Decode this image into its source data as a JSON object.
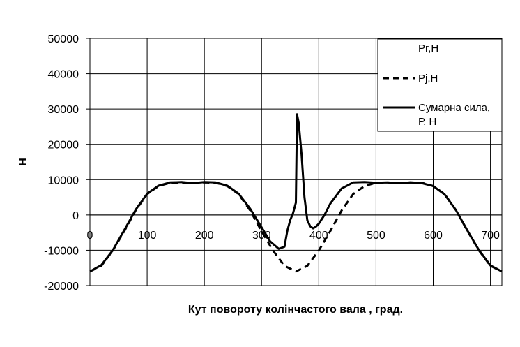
{
  "chart_data": {
    "type": "line",
    "title": "",
    "xlabel": "Кут повороту колінчастого вала , град.",
    "ylabel": "Н",
    "xlim": [
      0,
      720
    ],
    "ylim": [
      -20000,
      50000
    ],
    "x_ticks": [
      0,
      100,
      200,
      300,
      400,
      500,
      600,
      700
    ],
    "y_ticks": [
      -20000,
      -10000,
      0,
      10000,
      20000,
      30000,
      40000,
      50000
    ],
    "grid": true,
    "legend_position": "top-right",
    "series": [
      {
        "name": "Pr,H",
        "line_style": "none",
        "color": "#000000",
        "x": [],
        "y": []
      },
      {
        "name": "Pj,H",
        "line_style": "dashed",
        "color": "#000000",
        "x": [
          0,
          20,
          40,
          60,
          80,
          100,
          120,
          140,
          160,
          180,
          200,
          220,
          240,
          260,
          280,
          300,
          320,
          340,
          360,
          380,
          400,
          420,
          440,
          460,
          480,
          500,
          520,
          540,
          560,
          580,
          600,
          620,
          640,
          660,
          680,
          700,
          720
        ],
        "y": [
          -16000,
          -14400,
          -10100,
          -4600,
          1300,
          5900,
          8200,
          9100,
          9200,
          9000,
          9200,
          9100,
          8200,
          5900,
          1300,
          -4600,
          -10100,
          -14400,
          -16000,
          -14400,
          -10100,
          -4600,
          1300,
          5900,
          8200,
          9100,
          9200,
          9000,
          9200,
          9100,
          8200,
          5900,
          1300,
          -4600,
          -10100,
          -14400,
          -16000
        ]
      },
      {
        "name": "Сумарна сила,\nР, Н",
        "line_style": "solid",
        "color": "#000000",
        "x": [
          0,
          20,
          40,
          60,
          80,
          100,
          120,
          140,
          160,
          180,
          200,
          220,
          240,
          260,
          280,
          300,
          315,
          330,
          340,
          345,
          350,
          355,
          360,
          362,
          365,
          370,
          375,
          380,
          385,
          390,
          395,
          400,
          410,
          420,
          440,
          460,
          480,
          500,
          520,
          540,
          560,
          580,
          600,
          620,
          640,
          660,
          680,
          700,
          720
        ],
        "y": [
          -16000,
          -14200,
          -10000,
          -4300,
          1500,
          6000,
          8300,
          9200,
          9300,
          9000,
          9300,
          9200,
          8300,
          6000,
          1800,
          -3500,
          -7500,
          -9600,
          -9000,
          -4500,
          -1500,
          500,
          3500,
          28500,
          26000,
          17000,
          5000,
          -1500,
          -3200,
          -3800,
          -3300,
          -2500,
          0,
          3200,
          7500,
          9200,
          9300,
          9100,
          9200,
          9000,
          9200,
          9000,
          8200,
          5800,
          1300,
          -4500,
          -10000,
          -14300,
          -16000
        ]
      }
    ]
  }
}
